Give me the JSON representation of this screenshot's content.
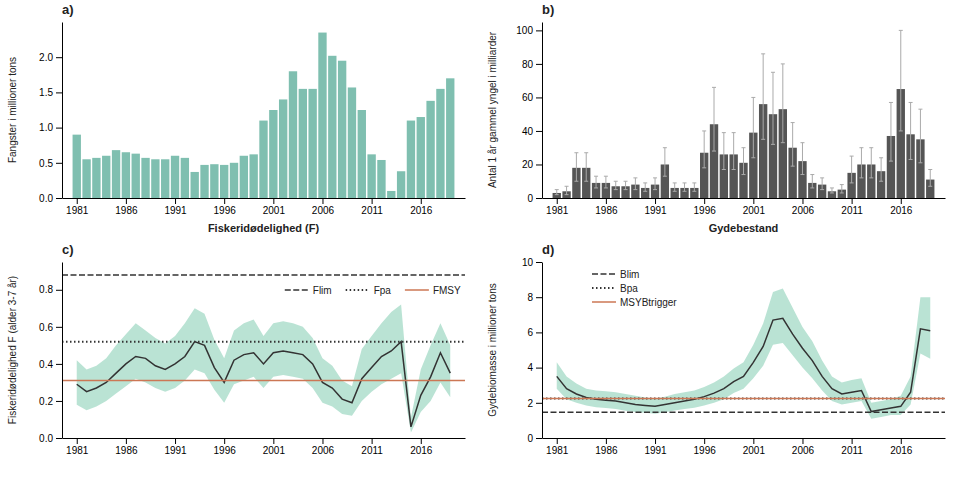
{
  "chart_data": [
    {
      "type": "bar",
      "title": "a)",
      "x_label": "Fiskeridødelighed (F)",
      "y_label": "Fangster i millioner tons",
      "x": [
        1981,
        1982,
        1983,
        1984,
        1985,
        1986,
        1987,
        1988,
        1989,
        1990,
        1991,
        1992,
        1993,
        1994,
        1995,
        1996,
        1997,
        1998,
        1999,
        2000,
        2001,
        2002,
        2003,
        2004,
        2005,
        2006,
        2007,
        2008,
        2009,
        2010,
        2011,
        2012,
        2013,
        2014,
        2015,
        2016,
        2017,
        2018,
        2019
      ],
      "values": [
        0.9,
        0.55,
        0.57,
        0.6,
        0.68,
        0.65,
        0.63,
        0.57,
        0.55,
        0.55,
        0.6,
        0.57,
        0.37,
        0.47,
        0.48,
        0.47,
        0.5,
        0.6,
        0.62,
        1.1,
        1.25,
        1.4,
        1.8,
        1.55,
        1.55,
        2.35,
        2.02,
        1.95,
        1.57,
        1.25,
        0.62,
        0.54,
        0.1,
        0.38,
        1.1,
        1.15,
        1.38,
        1.55,
        1.7
      ],
      "color": "#7fbfb0",
      "xlim": [
        1979.5,
        2020.5
      ],
      "xticks": [
        1981,
        1986,
        1991,
        1996,
        2001,
        2006,
        2011,
        2016
      ],
      "ylim": [
        0,
        2.5
      ],
      "yticks": [
        {
          "value": 0,
          "label": "0.0"
        },
        0.5,
        {
          "value": 1,
          "label": "1.0"
        },
        1.5,
        {
          "value": 2,
          "label": "2.0"
        }
      ],
      "grid": false
    },
    {
      "type": "bar",
      "title": "b)",
      "x_label": "Gydebestand",
      "y_label": "Antal 1 år gammel yngel i milliarder",
      "x": [
        1981,
        1982,
        1983,
        1984,
        1985,
        1986,
        1987,
        1988,
        1989,
        1990,
        1991,
        1992,
        1993,
        1994,
        1995,
        1996,
        1997,
        1998,
        1999,
        2000,
        2001,
        2002,
        2003,
        2004,
        2005,
        2006,
        2007,
        2008,
        2009,
        2010,
        2011,
        2012,
        2013,
        2014,
        2015,
        2016,
        2017,
        2018,
        2019
      ],
      "values": [
        3,
        4,
        18,
        18,
        9,
        9,
        7,
        7,
        8,
        6,
        8,
        20,
        6,
        6,
        6,
        27,
        44,
        26,
        26,
        21,
        39,
        56,
        50,
        53,
        30,
        22,
        9,
        8,
        4,
        5,
        15,
        20,
        20,
        16,
        37,
        65,
        38,
        35,
        11
      ],
      "upper": [
        5,
        7,
        27,
        27,
        13,
        13,
        10,
        10,
        12,
        9,
        12,
        30,
        9,
        9,
        9,
        40,
        66,
        39,
        39,
        30,
        60,
        86,
        75,
        80,
        45,
        33,
        14,
        12,
        6,
        8,
        25,
        30,
        30,
        24,
        57,
        100,
        57,
        53,
        17
      ],
      "lower": [
        2,
        2,
        10,
        10,
        6,
        6,
        5,
        5,
        5,
        4,
        5,
        13,
        4,
        4,
        4,
        18,
        28,
        17,
        17,
        14,
        24,
        35,
        32,
        33,
        19,
        14,
        6,
        5,
        3,
        3,
        9,
        12,
        12,
        10,
        22,
        40,
        23,
        21,
        7
      ],
      "color": "#555555",
      "xlim": [
        1979.5,
        2020.5
      ],
      "xticks": [
        1981,
        1986,
        1991,
        1996,
        2001,
        2006,
        2011,
        2016
      ],
      "ylim": [
        0,
        105
      ],
      "yticks": [
        0,
        20,
        40,
        60,
        80,
        100
      ],
      "grid": false
    },
    {
      "type": "line",
      "title": "c)",
      "y_label": "Fiskeridødelighed F (alder 3-7 år)",
      "x": [
        1981,
        1982,
        1983,
        1984,
        1985,
        1986,
        1987,
        1988,
        1989,
        1990,
        1991,
        1992,
        1993,
        1994,
        1995,
        1996,
        1997,
        1998,
        1999,
        2000,
        2001,
        2002,
        2003,
        2004,
        2005,
        2006,
        2007,
        2008,
        2009,
        2010,
        2011,
        2012,
        2013,
        2014,
        2015,
        2016,
        2017,
        2018,
        2019
      ],
      "values": [
        0.29,
        0.25,
        0.27,
        0.3,
        0.35,
        0.4,
        0.44,
        0.43,
        0.39,
        0.37,
        0.4,
        0.44,
        0.52,
        0.5,
        0.38,
        0.3,
        0.42,
        0.45,
        0.46,
        0.4,
        0.46,
        0.47,
        0.46,
        0.45,
        0.4,
        0.3,
        0.27,
        0.21,
        0.19,
        0.32,
        0.38,
        0.44,
        0.47,
        0.52,
        0.06,
        0.23,
        0.33,
        0.46,
        0.35
      ],
      "color": "#333333",
      "band": {
        "lower": [
          0.18,
          0.15,
          0.17,
          0.2,
          0.24,
          0.28,
          0.32,
          0.3,
          0.27,
          0.25,
          0.27,
          0.31,
          0.37,
          0.35,
          0.26,
          0.19,
          0.29,
          0.31,
          0.33,
          0.27,
          0.33,
          0.34,
          0.33,
          0.32,
          0.27,
          0.19,
          0.17,
          0.13,
          0.12,
          0.2,
          0.25,
          0.29,
          0.32,
          0.35,
          0.03,
          0.14,
          0.2,
          0.3,
          0.22
        ],
        "upper": [
          0.42,
          0.37,
          0.39,
          0.43,
          0.5,
          0.56,
          0.62,
          0.58,
          0.54,
          0.51,
          0.55,
          0.62,
          0.7,
          0.67,
          0.53,
          0.43,
          0.58,
          0.62,
          0.64,
          0.55,
          0.62,
          0.63,
          0.62,
          0.6,
          0.54,
          0.43,
          0.39,
          0.31,
          0.28,
          0.48,
          0.55,
          0.62,
          0.68,
          0.72,
          0.11,
          0.37,
          0.5,
          0.62,
          0.5
        ],
        "color": "#66c2a0"
      },
      "reference_lines": [
        {
          "name": "Flim",
          "value": 0.88,
          "color": "#333333",
          "line_style": "dashed"
        },
        {
          "name": "Fpa",
          "value": 0.52,
          "color": "#333333",
          "line_style": "dotted"
        },
        {
          "name": "FMSY",
          "value": 0.31,
          "color": "#cc7755",
          "line_style": "solid"
        }
      ],
      "legend": "upper right",
      "xlim": [
        1979.5,
        2020.5
      ],
      "xticks": [
        1981,
        1986,
        1991,
        1996,
        2001,
        2006,
        2011,
        2016
      ],
      "ylim": [
        0,
        0.95
      ],
      "yticks": [
        {
          "value": 0,
          "label": "0.0"
        },
        0.2,
        0.4,
        0.6,
        0.8
      ],
      "grid": false
    },
    {
      "type": "line",
      "title": "d)",
      "y_label": "Gydebiomasse i millioner tons",
      "x": [
        1981,
        1982,
        1983,
        1984,
        1985,
        1986,
        1987,
        1988,
        1989,
        1990,
        1991,
        1992,
        1993,
        1994,
        1995,
        1996,
        1997,
        1998,
        1999,
        2000,
        2001,
        2002,
        2003,
        2004,
        2005,
        2006,
        2007,
        2008,
        2009,
        2010,
        2011,
        2012,
        2013,
        2014,
        2015,
        2016,
        2017,
        2018,
        2019
      ],
      "values": [
        3.5,
        2.8,
        2.5,
        2.3,
        2.2,
        2.15,
        2.1,
        2.0,
        1.9,
        1.85,
        1.8,
        1.9,
        2.0,
        2.1,
        2.2,
        2.35,
        2.55,
        2.8,
        3.2,
        3.5,
        4.3,
        5.2,
        6.7,
        6.8,
        5.9,
        5.1,
        4.4,
        3.5,
        2.8,
        2.5,
        2.6,
        2.7,
        1.5,
        1.6,
        1.7,
        1.8,
        2.6,
        6.2,
        6.1
      ],
      "color": "#333333",
      "band": {
        "lower": [
          2.8,
          2.2,
          2.0,
          1.85,
          1.75,
          1.7,
          1.65,
          1.55,
          1.48,
          1.43,
          1.38,
          1.47,
          1.56,
          1.65,
          1.72,
          1.85,
          2.0,
          2.2,
          2.55,
          2.8,
          3.4,
          4.1,
          5.3,
          5.4,
          4.7,
          4.0,
          3.4,
          2.7,
          2.1,
          1.9,
          2.0,
          2.1,
          1.1,
          1.2,
          1.3,
          1.3,
          1.9,
          4.8,
          4.5
        ],
        "upper": [
          4.3,
          3.5,
          3.1,
          2.8,
          2.7,
          2.65,
          2.6,
          2.5,
          2.4,
          2.3,
          2.25,
          2.35,
          2.5,
          2.6,
          2.7,
          2.9,
          3.15,
          3.5,
          3.95,
          4.3,
          5.3,
          6.5,
          8.3,
          8.5,
          7.4,
          6.3,
          5.5,
          4.4,
          3.5,
          3.15,
          3.3,
          3.4,
          2.0,
          2.1,
          2.2,
          2.4,
          3.5,
          8.0,
          8.0
        ],
        "color": "#66c2a0"
      },
      "reference_lines": [
        {
          "name": "Blim",
          "value": 1.46,
          "color": "#333333",
          "line_style": "dashed"
        },
        {
          "name": "Bpa",
          "value": 2.25,
          "color": "#333333",
          "line_style": "dotted"
        },
        {
          "name": "MSYBtrigger",
          "value": 2.25,
          "color": "#cc7755",
          "line_style": "solid"
        }
      ],
      "legend": "upper left",
      "xlim": [
        1979.5,
        2020.5
      ],
      "xticks": [
        1981,
        1986,
        1991,
        1996,
        2001,
        2006,
        2011,
        2016
      ],
      "ylim": [
        0,
        10
      ],
      "yticks": [
        0,
        2,
        4,
        6,
        8,
        10
      ],
      "grid": false
    }
  ]
}
